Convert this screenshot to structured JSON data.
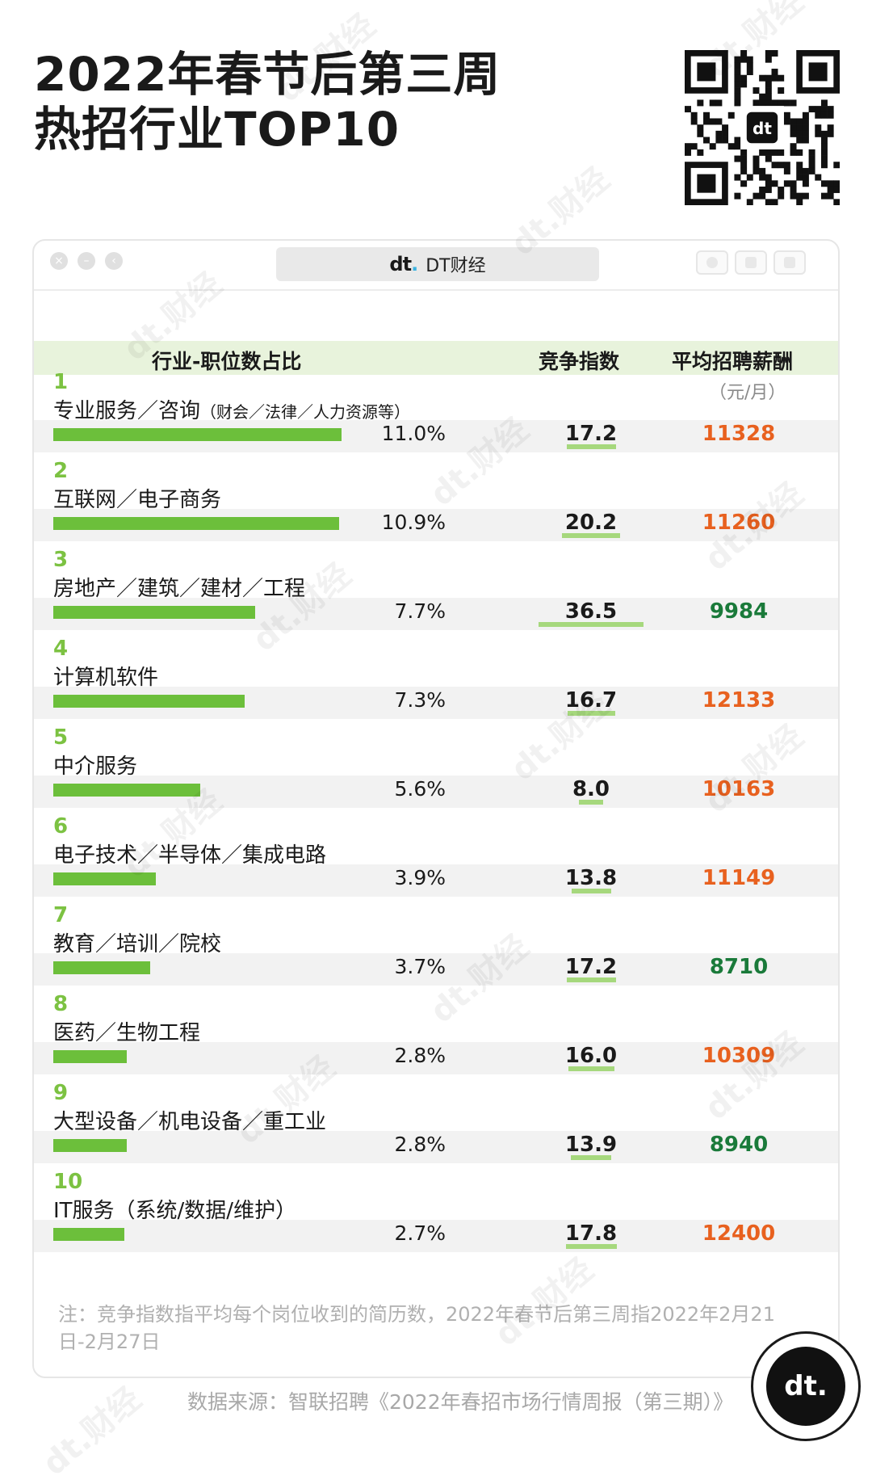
{
  "title_line1": "2022年春节后第三周",
  "title_line2": "热招行业TOP10",
  "tab": {
    "logo": "dt",
    "name": "DT财经"
  },
  "headers": {
    "industry": "行业-职位数占比",
    "competition": "竞争指数",
    "salary": "平均招聘薪酬",
    "salary_unit": "（元/月）"
  },
  "chart_data": {
    "type": "table",
    "title": "2022年春节后第三周热招行业TOP10",
    "columns": [
      "行业-职位数占比",
      "竞争指数",
      "平均招聘薪酬（元/月）"
    ],
    "rows": [
      {
        "rank": "1",
        "name": "专业服务／咨询",
        "sub": "（财会／法律／人力资源等）",
        "share": 11.0,
        "share_label": "11.0%",
        "competition": 17.2,
        "competition_label": "17.2",
        "salary": 11328,
        "salary_label": "11328",
        "salary_color": "#e8611f"
      },
      {
        "rank": "2",
        "name": "互联网／电子商务",
        "sub": "",
        "share": 10.9,
        "share_label": "10.9%",
        "competition": 20.2,
        "competition_label": "20.2",
        "salary": 11260,
        "salary_label": "11260",
        "salary_color": "#e8611f"
      },
      {
        "rank": "3",
        "name": "房地产／建筑／建材／工程",
        "sub": "",
        "share": 7.7,
        "share_label": "7.7%",
        "competition": 36.5,
        "competition_label": "36.5",
        "salary": 9984,
        "salary_label": "9984",
        "salary_color": "#1a7a3a"
      },
      {
        "rank": "4",
        "name": "计算机软件",
        "sub": "",
        "share": 7.3,
        "share_label": "7.3%",
        "competition": 16.7,
        "competition_label": "16.7",
        "salary": 12133,
        "salary_label": "12133",
        "salary_color": "#e8611f"
      },
      {
        "rank": "5",
        "name": "中介服务",
        "sub": "",
        "share": 5.6,
        "share_label": "5.6%",
        "competition": 8.0,
        "competition_label": "8.0",
        "salary": 10163,
        "salary_label": "10163",
        "salary_color": "#e8611f"
      },
      {
        "rank": "6",
        "name": "电子技术／半导体／集成电路",
        "sub": "",
        "share": 3.9,
        "share_label": "3.9%",
        "competition": 13.8,
        "competition_label": "13.8",
        "salary": 11149,
        "salary_label": "11149",
        "salary_color": "#e8611f"
      },
      {
        "rank": "7",
        "name": "教育／培训／院校",
        "sub": "",
        "share": 3.7,
        "share_label": "3.7%",
        "competition": 17.2,
        "competition_label": "17.2",
        "salary": 8710,
        "salary_label": "8710",
        "salary_color": "#1a7a3a"
      },
      {
        "rank": "8",
        "name": "医药／生物工程",
        "sub": "",
        "share": 2.8,
        "share_label": "2.8%",
        "competition": 16.0,
        "competition_label": "16.0",
        "salary": 10309,
        "salary_label": "10309",
        "salary_color": "#e8611f"
      },
      {
        "rank": "9",
        "name": "大型设备／机电设备／重工业",
        "sub": "",
        "share": 2.8,
        "share_label": "2.8%",
        "competition": 13.9,
        "competition_label": "13.9",
        "salary": 8940,
        "salary_label": "8940",
        "salary_color": "#1a7a3a"
      },
      {
        "rank": "10",
        "name": "IT服务（系统/数据/维护）",
        "sub": "",
        "share": 2.7,
        "share_label": "2.7%",
        "competition": 17.8,
        "competition_label": "17.8",
        "salary": 12400,
        "salary_label": "12400",
        "salary_color": "#e8611f"
      }
    ]
  },
  "note": "注：竞争指数指平均每个岗位收到的简历数，2022年春节后第三周指2022年2月21日-2月27日",
  "source": "数据来源：智联招聘《2022年春招市场行情周报（第三期）》",
  "bottom_logo": "dt.",
  "watermark_text": "dt.财经"
}
